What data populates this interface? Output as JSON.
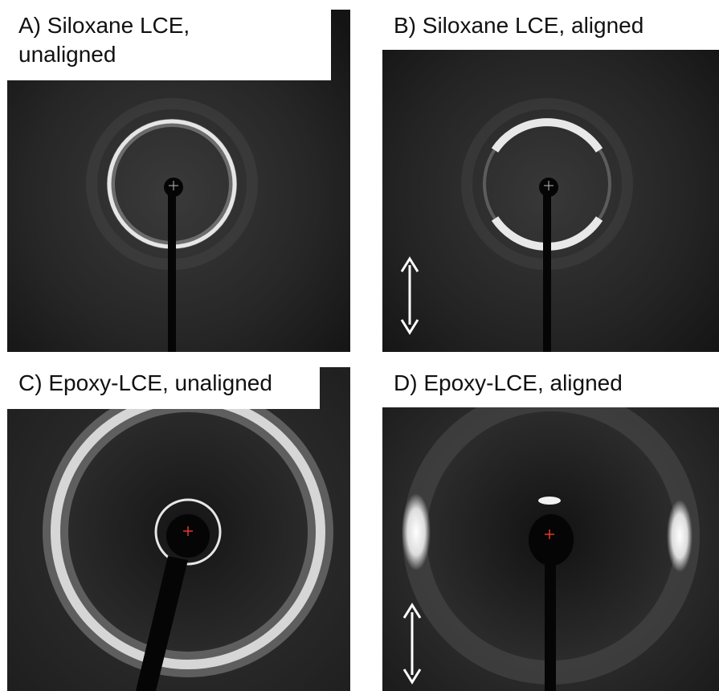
{
  "panels": {
    "a": {
      "label": "A) Siloxane LCE,\nunaligned"
    },
    "b": {
      "label": "B) Siloxane LCE, aligned"
    },
    "c": {
      "label": "C) Epoxy-LCE, unaligned"
    },
    "d": {
      "label": "D) Epoxy-LCE, aligned"
    }
  },
  "colors": {
    "background": "#ffffff",
    "detector": "#1a1a1a",
    "ring": "#d9d9d9",
    "arrow": "#ffffff",
    "beam_center_marker": "#e23a2a"
  },
  "icons": {
    "alignment_arrow": "double-headed-vertical-arrow",
    "beam_center": "plus-marker"
  }
}
